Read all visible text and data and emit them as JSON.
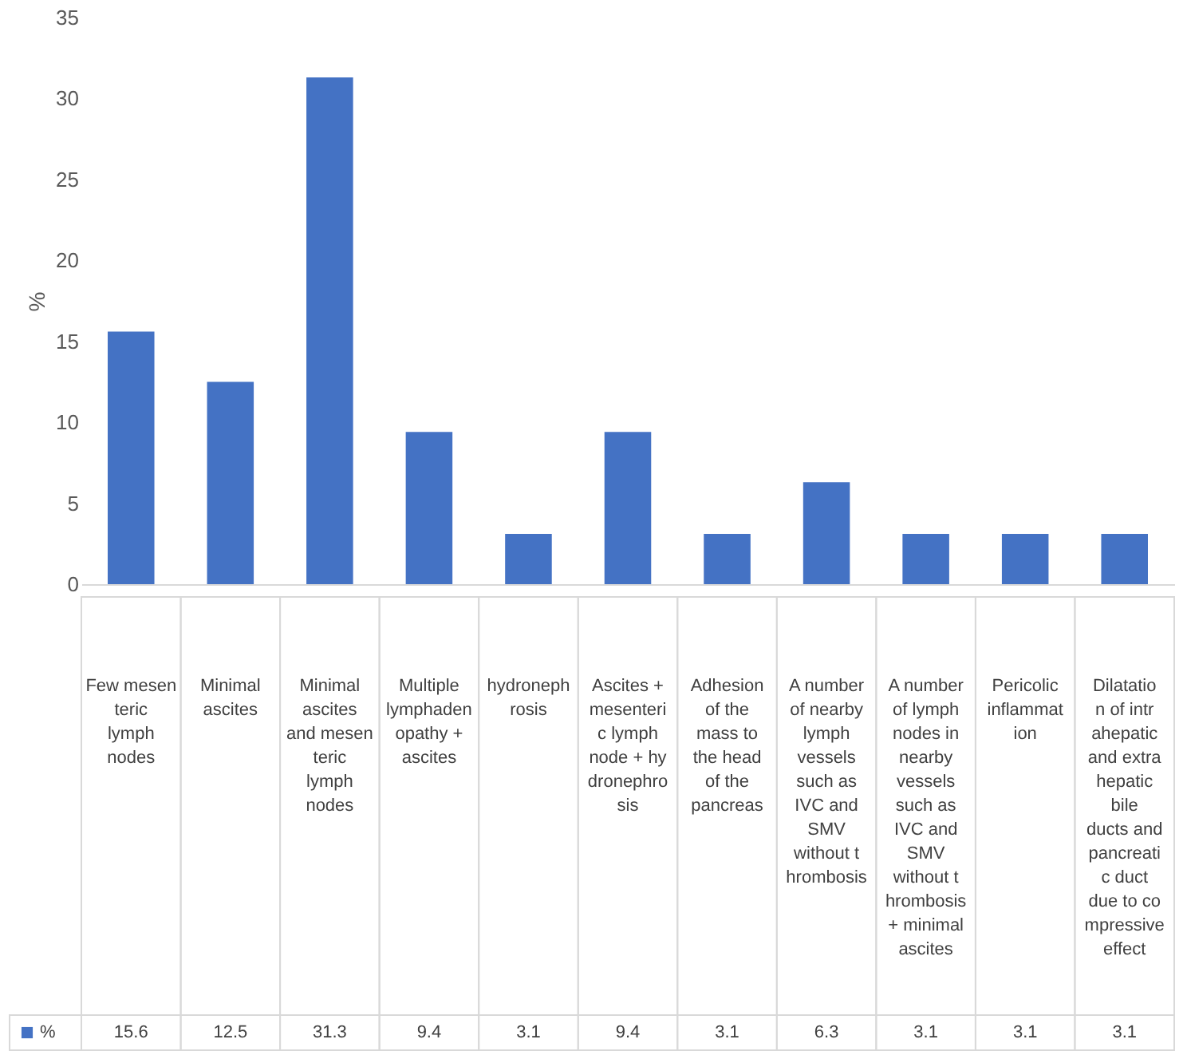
{
  "chart_data": {
    "type": "bar",
    "ylabel": "%",
    "categories": [
      "Few mesenteric lymph nodes",
      "Minimal ascites",
      "Minimal ascites and mesenteric lymph nodes",
      "Multiple lymphadenopathy + ascites",
      "hydronephrosis",
      "Ascites + mesenteric lymph node + hydronephrosis",
      "Adhesion of the mass to the head of the pancreas",
      "A number of nearby lymph vessels such as IVC and SMV without thrombosis",
      "A number of lymph nodes in nearby vessels such as IVC and SMV without thrombosis + minimal ascites",
      "Pericolic inflammation",
      "Dilatation of intrahepatic and extrahepatic bile ducts and pancreatic duct due to compressive effect"
    ],
    "series": [
      {
        "name": "%",
        "color": "#4472c4",
        "values": [
          15.6,
          12.5,
          31.3,
          9.4,
          3.1,
          9.4,
          3.1,
          6.3,
          3.1,
          3.1,
          3.1
        ]
      }
    ],
    "ylim": [
      0,
      35
    ],
    "yticks": [
      0,
      5,
      10,
      15,
      20,
      25,
      30,
      35
    ],
    "grid": false,
    "data_labels": true,
    "legend": "bottom"
  }
}
